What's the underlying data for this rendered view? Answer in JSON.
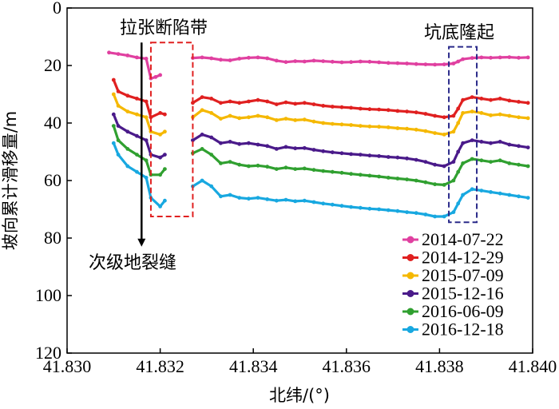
{
  "chart_data": {
    "type": "scatter",
    "xlabel": "北纬/(°)",
    "ylabel": "坡向累计滑移量/m",
    "xlim": [
      41.83,
      41.84
    ],
    "ylim": [
      0,
      120
    ],
    "y_inverted": true,
    "x_ticks": [
      41.83,
      41.832,
      41.834,
      41.836,
      41.838,
      41.84
    ],
    "x_tick_labels": [
      "41.830",
      "41.832",
      "41.834",
      "41.836",
      "41.838",
      "41.840"
    ],
    "y_ticks": [
      0,
      20,
      40,
      60,
      80,
      100,
      120
    ],
    "y_tick_labels": [
      "0",
      "20",
      "40",
      "60",
      "80",
      "100",
      "120"
    ],
    "grid": false,
    "legend_position": "bottom-right",
    "series": [
      {
        "name": "2014-07-22",
        "color": "#e040a0",
        "points": [
          [
            41.8309,
            15.5
          ],
          [
            41.8311,
            16
          ],
          [
            41.8313,
            16.5
          ],
          [
            41.8315,
            17.2
          ],
          [
            41.8317,
            17.6
          ],
          [
            41.8318,
            24.5
          ],
          [
            41.8319,
            24
          ],
          [
            41.832,
            23.3
          ],
          [
            41.8327,
            17.4
          ],
          [
            41.8329,
            17.2
          ],
          [
            41.8331,
            17.5
          ],
          [
            41.8333,
            18
          ],
          [
            41.8335,
            18.2
          ],
          [
            41.8337,
            17.6
          ],
          [
            41.8339,
            17.3
          ],
          [
            41.8341,
            17.2
          ],
          [
            41.8343,
            17.5
          ],
          [
            41.8345,
            18.3
          ],
          [
            41.8347,
            18.8
          ],
          [
            41.8349,
            18.5
          ],
          [
            41.8351,
            18.6
          ],
          [
            41.8353,
            18.3
          ],
          [
            41.8355,
            18.5
          ],
          [
            41.8357,
            18.7
          ],
          [
            41.8359,
            18.9
          ],
          [
            41.8361,
            18.8
          ],
          [
            41.8363,
            18.6
          ],
          [
            41.8365,
            18.7
          ],
          [
            41.8367,
            18.9
          ],
          [
            41.8369,
            19.1
          ],
          [
            41.8371,
            19.2
          ],
          [
            41.8373,
            19.3
          ],
          [
            41.8375,
            19.5
          ],
          [
            41.8377,
            19.6
          ],
          [
            41.8379,
            19.7
          ],
          [
            41.8381,
            19.6
          ],
          [
            41.8383,
            19.3
          ],
          [
            41.8384,
            18.6
          ],
          [
            41.8385,
            17.8
          ],
          [
            41.8387,
            17.4
          ],
          [
            41.8389,
            17.2
          ],
          [
            41.8391,
            17.3
          ],
          [
            41.8393,
            17.2
          ],
          [
            41.8395,
            17.1
          ],
          [
            41.8397,
            17.3
          ],
          [
            41.8399,
            17.2
          ]
        ]
      },
      {
        "name": "2014-12-29",
        "color": "#e02020",
        "points": [
          [
            41.831,
            25
          ],
          [
            41.8311,
            29
          ],
          [
            41.8313,
            30.5
          ],
          [
            41.8315,
            31.5
          ],
          [
            41.8317,
            32.5
          ],
          [
            41.8318,
            38
          ],
          [
            41.832,
            36.5
          ],
          [
            41.8321,
            37
          ],
          [
            41.8327,
            33
          ],
          [
            41.8329,
            31
          ],
          [
            41.8331,
            31.5
          ],
          [
            41.8333,
            33
          ],
          [
            41.8335,
            32.5
          ],
          [
            41.8337,
            33
          ],
          [
            41.8339,
            32.5
          ],
          [
            41.8341,
            32
          ],
          [
            41.8343,
            32.5
          ],
          [
            41.8345,
            33.5
          ],
          [
            41.8347,
            32.8
          ],
          [
            41.8349,
            33.3
          ],
          [
            41.8351,
            33
          ],
          [
            41.8353,
            33.5
          ],
          [
            41.8355,
            34
          ],
          [
            41.8357,
            34.3
          ],
          [
            41.8359,
            34.5
          ],
          [
            41.8361,
            34.7
          ],
          [
            41.8363,
            35
          ],
          [
            41.8365,
            35.2
          ],
          [
            41.8367,
            35.3
          ],
          [
            41.8369,
            35.5
          ],
          [
            41.8371,
            35.8
          ],
          [
            41.8373,
            36
          ],
          [
            41.8375,
            36.3
          ],
          [
            41.8377,
            36.8
          ],
          [
            41.8379,
            37.5
          ],
          [
            41.8381,
            38
          ],
          [
            41.8383,
            37.5
          ],
          [
            41.8384,
            35
          ],
          [
            41.8385,
            32
          ],
          [
            41.8387,
            31
          ],
          [
            41.8389,
            31.5
          ],
          [
            41.8391,
            32
          ],
          [
            41.8393,
            31.5
          ],
          [
            41.8395,
            32.2
          ],
          [
            41.8397,
            32.6
          ],
          [
            41.8399,
            33
          ]
        ]
      },
      {
        "name": "2015-07-09",
        "color": "#f5b800",
        "points": [
          [
            41.831,
            30
          ],
          [
            41.8311,
            34
          ],
          [
            41.8313,
            36
          ],
          [
            41.8315,
            37
          ],
          [
            41.8317,
            38
          ],
          [
            41.8318,
            43
          ],
          [
            41.832,
            44
          ],
          [
            41.8321,
            43
          ],
          [
            41.8327,
            38
          ],
          [
            41.8329,
            35.5
          ],
          [
            41.8331,
            36.5
          ],
          [
            41.8333,
            38.5
          ],
          [
            41.8335,
            37.5
          ],
          [
            41.8337,
            38.3
          ],
          [
            41.8339,
            38
          ],
          [
            41.8341,
            37.5
          ],
          [
            41.8343,
            38
          ],
          [
            41.8345,
            39
          ],
          [
            41.8347,
            38.5
          ],
          [
            41.8349,
            39
          ],
          [
            41.8351,
            38.8
          ],
          [
            41.8353,
            39.5
          ],
          [
            41.8355,
            40
          ],
          [
            41.8357,
            40.3
          ],
          [
            41.8359,
            40.5
          ],
          [
            41.8361,
            40.7
          ],
          [
            41.8363,
            41
          ],
          [
            41.8365,
            41.2
          ],
          [
            41.8367,
            41.3
          ],
          [
            41.8369,
            41.5
          ],
          [
            41.8371,
            41.8
          ],
          [
            41.8373,
            42
          ],
          [
            41.8375,
            42.3
          ],
          [
            41.8377,
            42.8
          ],
          [
            41.8379,
            43.5
          ],
          [
            41.8381,
            44
          ],
          [
            41.8383,
            43
          ],
          [
            41.8384,
            40
          ],
          [
            41.8385,
            36.5
          ],
          [
            41.8387,
            36
          ],
          [
            41.8389,
            36.5
          ],
          [
            41.8391,
            37.3
          ],
          [
            41.8393,
            37
          ],
          [
            41.8395,
            37.5
          ],
          [
            41.8397,
            38
          ],
          [
            41.8399,
            38.3
          ]
        ]
      },
      {
        "name": "2015-12-16",
        "color": "#4a1a8a",
        "points": [
          [
            41.831,
            37
          ],
          [
            41.8311,
            41
          ],
          [
            41.8313,
            43
          ],
          [
            41.8315,
            44.5
          ],
          [
            41.8317,
            46
          ],
          [
            41.8318,
            51
          ],
          [
            41.832,
            52
          ],
          [
            41.8321,
            51
          ],
          [
            41.8327,
            46
          ],
          [
            41.8329,
            44
          ],
          [
            41.8331,
            45
          ],
          [
            41.8333,
            47
          ],
          [
            41.8335,
            46.5
          ],
          [
            41.8337,
            47.3
          ],
          [
            41.8339,
            47
          ],
          [
            41.8341,
            47.5
          ],
          [
            41.8343,
            48
          ],
          [
            41.8345,
            49
          ],
          [
            41.8347,
            48.3
          ],
          [
            41.8349,
            48.8
          ],
          [
            41.8351,
            48.7
          ],
          [
            41.8353,
            49.3
          ],
          [
            41.8355,
            49.8
          ],
          [
            41.8357,
            50.2
          ],
          [
            41.8359,
            50.5
          ],
          [
            41.8361,
            50.8
          ],
          [
            41.8363,
            51
          ],
          [
            41.8365,
            51.3
          ],
          [
            41.8367,
            51.5
          ],
          [
            41.8369,
            51.8
          ],
          [
            41.8371,
            52
          ],
          [
            41.8373,
            52.3
          ],
          [
            41.8375,
            52.8
          ],
          [
            41.8377,
            53.5
          ],
          [
            41.8379,
            54.5
          ],
          [
            41.8381,
            55
          ],
          [
            41.8383,
            53.5
          ],
          [
            41.8384,
            50
          ],
          [
            41.8385,
            47
          ],
          [
            41.8387,
            46
          ],
          [
            41.8389,
            46.5
          ],
          [
            41.8391,
            47
          ],
          [
            41.8393,
            46.5
          ],
          [
            41.8395,
            47.5
          ],
          [
            41.8397,
            48
          ],
          [
            41.8399,
            48.5
          ]
        ]
      },
      {
        "name": "2016-06-09",
        "color": "#30a030",
        "points": [
          [
            41.831,
            41
          ],
          [
            41.8311,
            46
          ],
          [
            41.8313,
            49
          ],
          [
            41.8315,
            51
          ],
          [
            41.8317,
            53
          ],
          [
            41.8318,
            58
          ],
          [
            41.832,
            58
          ],
          [
            41.8321,
            56
          ],
          [
            41.8327,
            50.5
          ],
          [
            41.8329,
            49
          ],
          [
            41.8331,
            51
          ],
          [
            41.8333,
            54
          ],
          [
            41.8335,
            53.5
          ],
          [
            41.8337,
            54.5
          ],
          [
            41.8339,
            55
          ],
          [
            41.8341,
            54.8
          ],
          [
            41.8343,
            55.2
          ],
          [
            41.8345,
            56
          ],
          [
            41.8347,
            55.5
          ],
          [
            41.8349,
            56
          ],
          [
            41.8351,
            55.8
          ],
          [
            41.8353,
            56.3
          ],
          [
            41.8355,
            56.7
          ],
          [
            41.8357,
            57
          ],
          [
            41.8359,
            57.3
          ],
          [
            41.8361,
            57.7
          ],
          [
            41.8363,
            58
          ],
          [
            41.8365,
            58.3
          ],
          [
            41.8367,
            58.6
          ],
          [
            41.8369,
            59
          ],
          [
            41.8371,
            59.3
          ],
          [
            41.8373,
            59.6
          ],
          [
            41.8375,
            60
          ],
          [
            41.8377,
            60.6
          ],
          [
            41.8379,
            61.3
          ],
          [
            41.8381,
            61.5
          ],
          [
            41.8383,
            60
          ],
          [
            41.8384,
            57
          ],
          [
            41.8385,
            54
          ],
          [
            41.8387,
            52.5
          ],
          [
            41.8389,
            53
          ],
          [
            41.8391,
            53.5
          ],
          [
            41.8393,
            53
          ],
          [
            41.8395,
            54
          ],
          [
            41.8397,
            54.5
          ],
          [
            41.8399,
            55
          ]
        ]
      },
      {
        "name": "2016-12-18",
        "color": "#18a8e0",
        "points": [
          [
            41.831,
            47
          ],
          [
            41.8311,
            51
          ],
          [
            41.8313,
            55
          ],
          [
            41.8315,
            57
          ],
          [
            41.8317,
            59
          ],
          [
            41.8318,
            66
          ],
          [
            41.832,
            69
          ],
          [
            41.8321,
            67
          ],
          [
            41.8327,
            62
          ],
          [
            41.8329,
            60
          ],
          [
            41.8331,
            62
          ],
          [
            41.8333,
            65.5
          ],
          [
            41.8335,
            65
          ],
          [
            41.8337,
            66
          ],
          [
            41.8339,
            66.3
          ],
          [
            41.8341,
            66
          ],
          [
            41.8343,
            66.5
          ],
          [
            41.8345,
            67
          ],
          [
            41.8347,
            66.7
          ],
          [
            41.8349,
            67.2
          ],
          [
            41.8351,
            67
          ],
          [
            41.8353,
            67.5
          ],
          [
            41.8355,
            68
          ],
          [
            41.8357,
            68.4
          ],
          [
            41.8359,
            68.8
          ],
          [
            41.8361,
            69.2
          ],
          [
            41.8363,
            69.5
          ],
          [
            41.8365,
            69.8
          ],
          [
            41.8367,
            70
          ],
          [
            41.8369,
            70.3
          ],
          [
            41.8371,
            70.6
          ],
          [
            41.8373,
            71
          ],
          [
            41.8375,
            71.3
          ],
          [
            41.8377,
            71.8
          ],
          [
            41.8379,
            72.5
          ],
          [
            41.8381,
            72.5
          ],
          [
            41.8383,
            71
          ],
          [
            41.8384,
            68
          ],
          [
            41.8385,
            65
          ],
          [
            41.8387,
            63
          ],
          [
            41.8389,
            63.5
          ],
          [
            41.8391,
            64
          ],
          [
            41.8393,
            64.5
          ],
          [
            41.8395,
            65
          ],
          [
            41.8397,
            65.5
          ],
          [
            41.8399,
            66
          ]
        ]
      }
    ],
    "annotations": {
      "zone1": {
        "label": "拉张断陷带",
        "x_range": [
          41.8318,
          41.8327
        ],
        "y_range": [
          12,
          72.5
        ],
        "color": "#e02020"
      },
      "zone2": {
        "label": "坑底隆起",
        "x_range": [
          41.8382,
          41.8388
        ],
        "y_range": [
          13.5,
          74.5
        ],
        "color": "#2a2a8a"
      },
      "arrow": {
        "label": "次级地裂缝",
        "x": 41.8316,
        "y_from": 12,
        "y_to": 83
      }
    }
  }
}
